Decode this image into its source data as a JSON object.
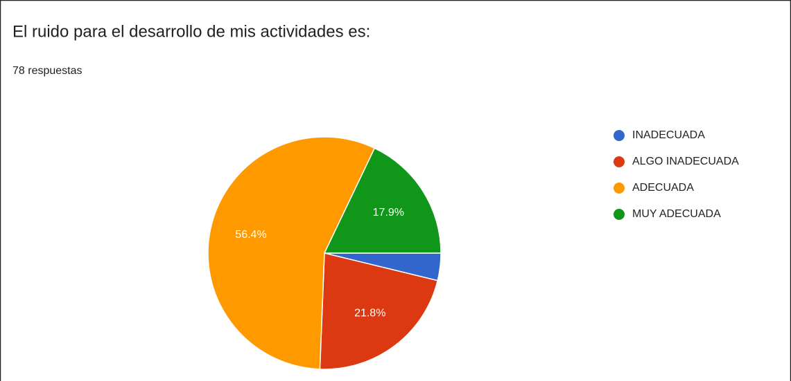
{
  "chart_data": {
    "type": "pie",
    "title": "El ruido para el desarrollo de mis actividades es:",
    "subtitle": "78 respuestas",
    "categories": [
      "INADECUADA",
      "ALGO INADECUADA",
      "ADECUADA",
      "MUY ADECUADA"
    ],
    "values": [
      3.8,
      21.8,
      56.4,
      17.9
    ],
    "value_labels": [
      null,
      "21.8%",
      "56.4%",
      "17.9%"
    ],
    "colors": [
      "#3366cc",
      "#dc3912",
      "#ff9900",
      "#109618"
    ],
    "legend": "right"
  }
}
